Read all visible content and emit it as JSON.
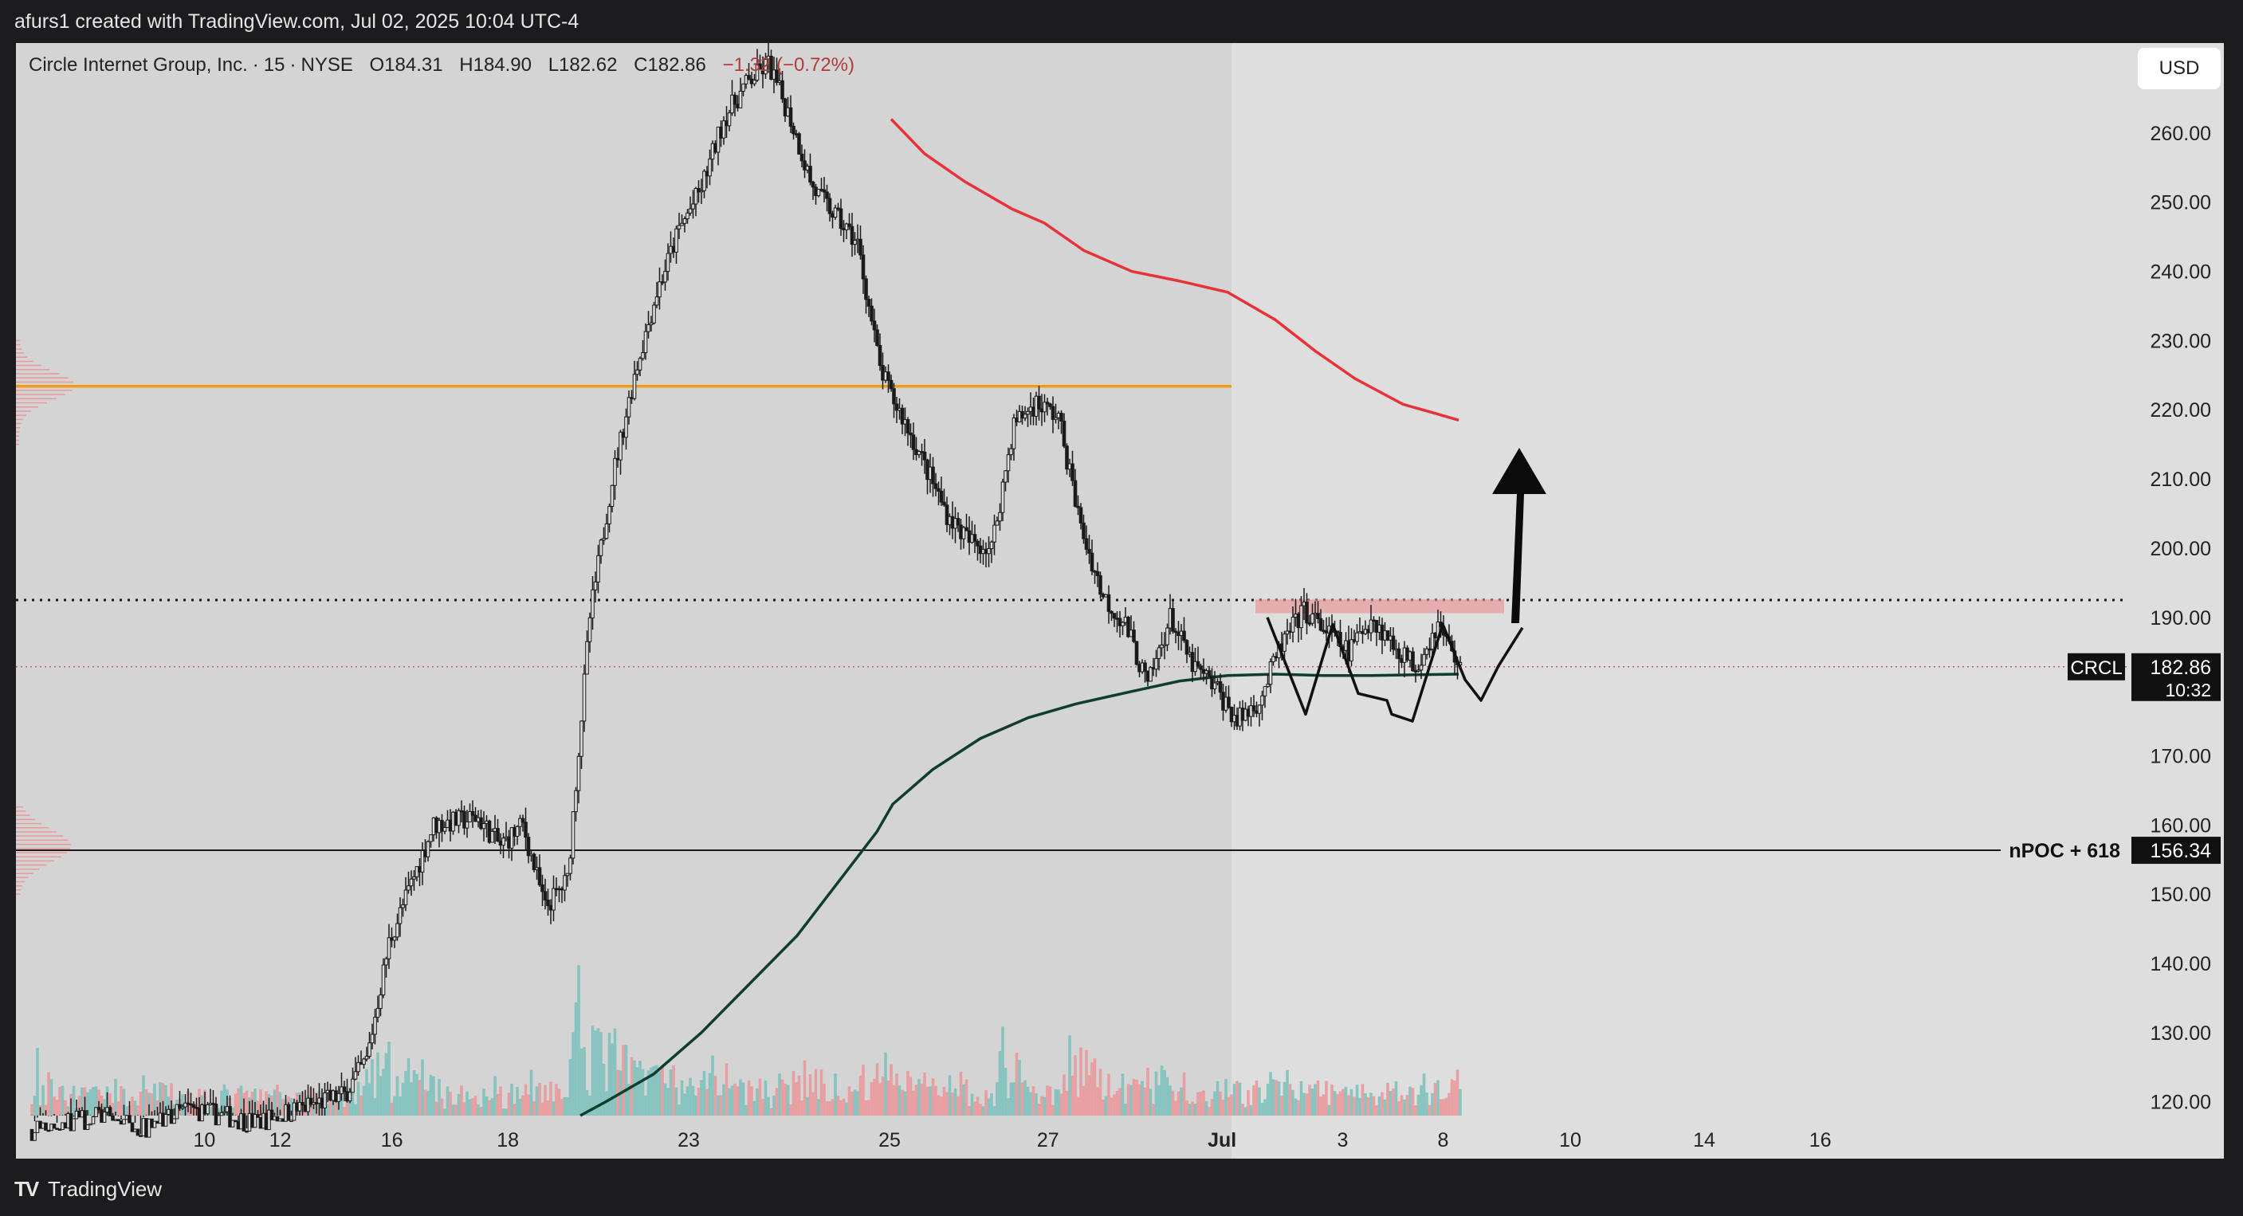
{
  "header": {
    "created_by": "afurs1 created with TradingView.com, Jul 02, 2025 10:04 UTC-4"
  },
  "legend": {
    "symbol": "Circle Internet Group, Inc.",
    "interval": "15",
    "exchange": "NYSE",
    "open": "O184.31",
    "high": "H184.90",
    "low": "L182.62",
    "close": "C182.86",
    "change": "−1.32 (−0.72%)"
  },
  "currency": "USD",
  "footer": {
    "brand": "TradingView",
    "logo_icon": "tradingview-logo-icon"
  },
  "colors": {
    "bull_volume": "#7fc2bd",
    "bear_volume": "#e9999b",
    "sma_red": "#e8323a",
    "sma_green": "#0f3d2e",
    "resistance": "#f39c12",
    "candle": "#1a1a1a"
  },
  "chart_data": {
    "type": "candlestick",
    "title": "",
    "xlabel": "",
    "ylabel": "",
    "ylim": [
      118,
      273
    ],
    "y_ticks": [
      "260.00",
      "250.00",
      "240.00",
      "230.00",
      "220.00",
      "210.00",
      "200.00",
      "190.00",
      "170.00",
      "160.00",
      "150.00",
      "140.00",
      "130.00",
      "120.00"
    ],
    "x_ticks": [
      "10",
      "12",
      "16",
      "18",
      "23",
      "25",
      "27",
      "Jul",
      "3",
      "8",
      "10",
      "14",
      "16"
    ],
    "last_price": {
      "symbol": "CRCL",
      "price": "182.86",
      "countdown": "10:32",
      "value": 182.86
    },
    "levels": [
      {
        "name": "resistance-orange",
        "value": 223.4
      },
      {
        "name": "neckline-dotted",
        "value": 192.5
      },
      {
        "name": "npoc",
        "label": "nPOC + 618",
        "value_text": "156.34",
        "value": 156.34
      }
    ],
    "grid": false,
    "series": [
      {
        "name": "",
        "kind": "close-path",
        "x": [
          0,
          3,
          5,
          7,
          10,
          12,
          14,
          15,
          16,
          18,
          20,
          21,
          22,
          23,
          24,
          25,
          26,
          27,
          28,
          29,
          30,
          31,
          32,
          33,
          34,
          35,
          36,
          37,
          38,
          38.5,
          39,
          40,
          41,
          42,
          43,
          44,
          45,
          46,
          47,
          48,
          49,
          50,
          51,
          52,
          53,
          54,
          55,
          56,
          57,
          58,
          59,
          60,
          61,
          62,
          63,
          64
        ],
        "values": [
          116,
          118,
          116,
          119,
          117,
          119,
          121,
          126,
          143,
          160,
          161,
          157,
          160,
          148,
          152,
          190,
          210,
          225,
          237,
          246,
          252,
          262,
          267,
          270,
          262,
          252,
          248,
          244,
          226,
          222,
          219,
          212,
          205,
          201,
          200,
          218,
          221,
          219,
          203,
          193,
          189,
          180,
          190,
          183,
          180,
          175,
          178,
          186,
          191,
          188,
          185,
          190,
          186,
          183,
          189,
          182.86
        ]
      }
    ]
  }
}
